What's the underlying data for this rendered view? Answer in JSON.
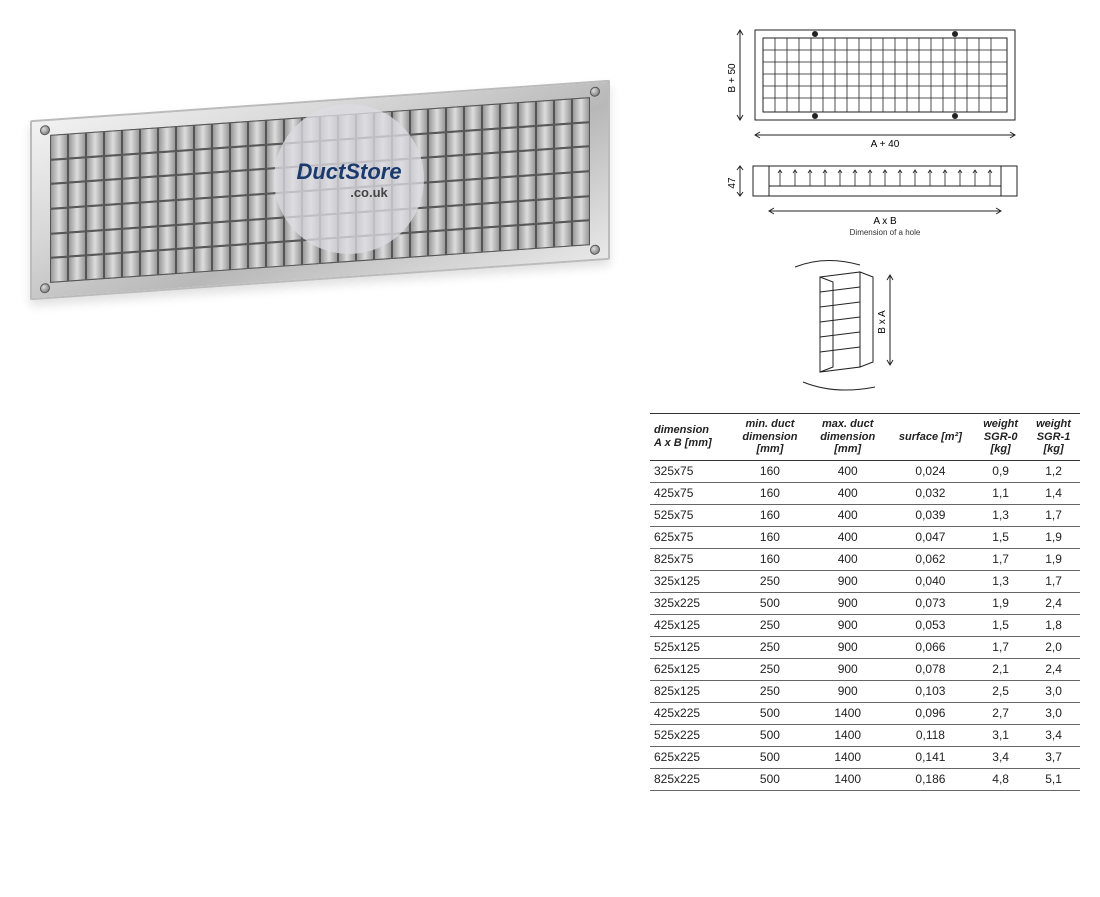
{
  "watermark": {
    "brand": "DuctStore",
    "domain": ".co.uk"
  },
  "diagram": {
    "front_width_label": "A + 40",
    "front_height_label": "B + 50",
    "side_depth_label": "47",
    "hole_label": "A x B",
    "hole_caption": "Dimension of a hole",
    "end_label": "B x A",
    "stroke": "#333333",
    "fill": "#ffffff"
  },
  "table": {
    "headers": [
      "dimension A x B [mm]",
      "min. duct dimension [mm]",
      "max. duct dimension [mm]",
      "surface [m²]",
      "weight SGR-0 [kg]",
      "weight SGR-1 [kg]"
    ],
    "rows": [
      [
        "325x75",
        "160",
        "400",
        "0,024",
        "0,9",
        "1,2"
      ],
      [
        "425x75",
        "160",
        "400",
        "0,032",
        "1,1",
        "1,4"
      ],
      [
        "525x75",
        "160",
        "400",
        "0,039",
        "1,3",
        "1,7"
      ],
      [
        "625x75",
        "160",
        "400",
        "0,047",
        "1,5",
        "1,9"
      ],
      [
        "825x75",
        "160",
        "400",
        "0,062",
        "1,7",
        "1,9"
      ],
      [
        "325x125",
        "250",
        "900",
        "0,040",
        "1,3",
        "1,7"
      ],
      [
        "325x225",
        "500",
        "900",
        "0,073",
        "1,9",
        "2,4"
      ],
      [
        "425x125",
        "250",
        "900",
        "0,053",
        "1,5",
        "1,8"
      ],
      [
        "525x125",
        "250",
        "900",
        "0,066",
        "1,7",
        "2,0"
      ],
      [
        "625x125",
        "250",
        "900",
        "0,078",
        "2,1",
        "2,4"
      ],
      [
        "825x125",
        "250",
        "900",
        "0,103",
        "2,5",
        "3,0"
      ],
      [
        "425x225",
        "500",
        "1400",
        "0,096",
        "2,7",
        "3,0"
      ],
      [
        "525x225",
        "500",
        "1400",
        "0,118",
        "3,1",
        "3,4"
      ],
      [
        "625x225",
        "500",
        "1400",
        "0,141",
        "3,4",
        "3,7"
      ],
      [
        "825x225",
        "500",
        "1400",
        "0,186",
        "4,8",
        "5,1"
      ]
    ],
    "border_color": "#333333",
    "font_size": 12,
    "header_font_size": 11
  }
}
